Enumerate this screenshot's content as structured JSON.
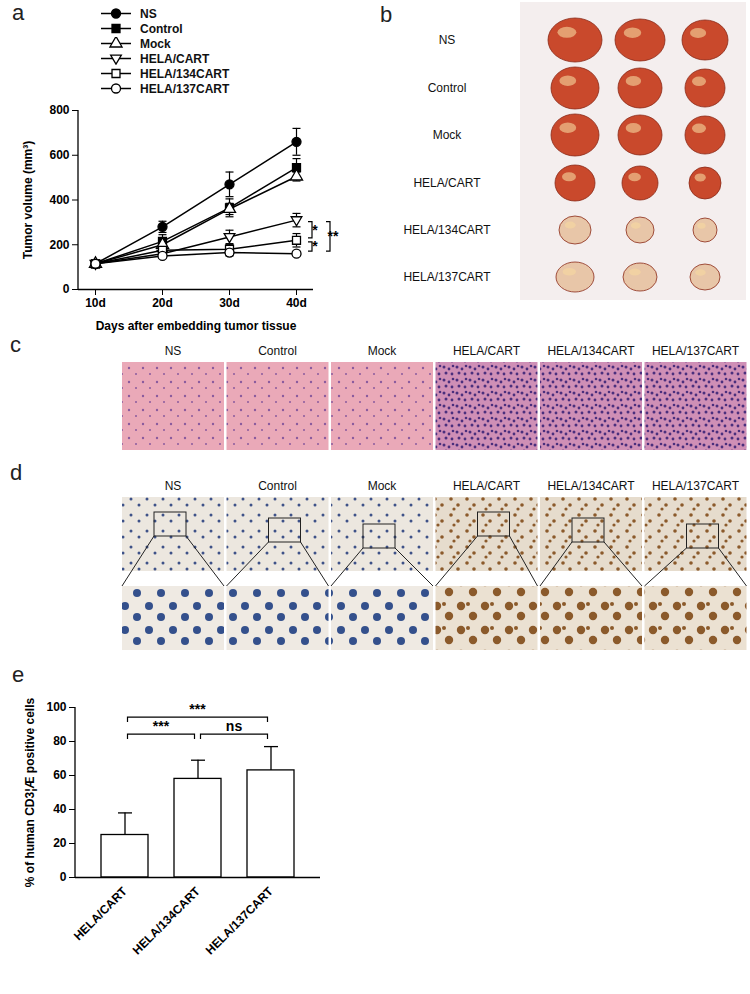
{
  "chart_data": [
    {
      "type": "line",
      "title": "a",
      "categories": [
        "10d",
        "20d",
        "30d",
        "40d"
      ],
      "xlabel": "Days after embedding tumor tissue",
      "ylabel": "Tumor volume (mm³)",
      "ylim": [
        0,
        800
      ],
      "yticks": [
        0,
        200,
        400,
        600,
        800
      ],
      "legend": "top-left",
      "series": [
        {
          "name": "NS",
          "color": "#000000",
          "marker": "circle-filled",
          "values": [
            115,
            280,
            470,
            660
          ],
          "errors": [
            8,
            25,
            55,
            60
          ]
        },
        {
          "name": "Control",
          "color": "#000000",
          "marker": "square-filled",
          "values": [
            115,
            215,
            365,
            545
          ],
          "errors": [
            8,
            30,
            40,
            40
          ]
        },
        {
          "name": "Mock",
          "color": "#000000",
          "marker": "triangle-open",
          "values": [
            115,
            200,
            360,
            505
          ],
          "errors": [
            8,
            15,
            25,
            20
          ]
        },
        {
          "name": "HELA/CART",
          "color": "#000000",
          "marker": "triangle-down-open",
          "values": [
            115,
            160,
            235,
            310
          ],
          "errors": [
            8,
            15,
            30,
            30
          ]
        },
        {
          "name": "HELA/134CART",
          "color": "#000000",
          "marker": "square-open",
          "values": [
            115,
            175,
            180,
            220
          ],
          "errors": [
            5,
            10,
            20,
            30
          ]
        },
        {
          "name": "HELA/137CART",
          "color": "#000000",
          "marker": "circle-open",
          "values": [
            115,
            150,
            165,
            160
          ],
          "errors": [
            5,
            10,
            15,
            10
          ]
        }
      ],
      "annotations": [
        {
          "text": "**",
          "from": "HELA/CART",
          "to": "HELA/137CART"
        },
        {
          "text": "*",
          "from": "HELA/CART",
          "to": "HELA/134CART"
        },
        {
          "text": "*",
          "from": "HELA/134CART",
          "to": "HELA/137CART"
        }
      ]
    },
    {
      "type": "bar",
      "title": "e",
      "categories": [
        "HELA/CART",
        "HELA/134CART",
        "HELA/137CART"
      ],
      "values": [
        25,
        58,
        63
      ],
      "errors": [
        13,
        11,
        14
      ],
      "color": "#ffffff",
      "ylabel": "% of human CD3¦Æ positive cells",
      "ylim": [
        0,
        100
      ],
      "yticks": [
        0,
        20,
        40,
        60,
        80,
        100
      ],
      "annotations": [
        {
          "text": "***",
          "from": "HELA/CART",
          "to": "HELA/137CART"
        },
        {
          "text": "***",
          "from": "HELA/CART",
          "to": "HELA/134CART"
        },
        {
          "text": "ns",
          "from": "HELA/134CART",
          "to": "HELA/137CART"
        }
      ]
    }
  ],
  "images": [
    {
      "label": "b",
      "rows": [
        "NS",
        "Control",
        "Mock",
        "HELA/CART",
        "HELA/134CART",
        "HELA/137CART"
      ]
    },
    {
      "label": "c",
      "columns": [
        "NS",
        "Control",
        "Mock",
        "HELA/CART",
        "HELA/134CART",
        "HELA/137CART"
      ]
    },
    {
      "label": "d",
      "columns": [
        "NS",
        "Control",
        "Mock",
        "HELA/CART",
        "HELA/134CART",
        "HELA/137CART"
      ]
    }
  ]
}
